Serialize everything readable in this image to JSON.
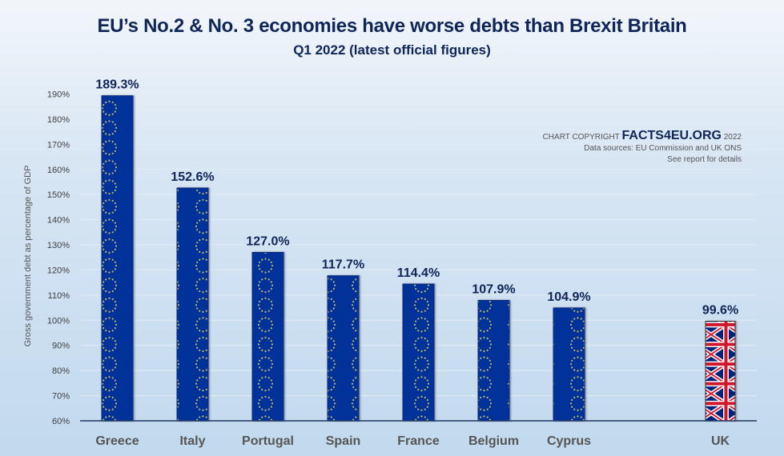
{
  "chart_data": {
    "type": "bar",
    "title": "EU’s No.2 & No. 3 economies have worse debts than Brexit Britain",
    "subtitle": "Q1 2022 (latest official figures)",
    "xlabel": "",
    "ylabel": "Gross government debt as percentage of GDP",
    "categories": [
      "Greece",
      "Italy",
      "Portugal",
      "Spain",
      "France",
      "Belgium",
      "Cyprus",
      "UK"
    ],
    "values": [
      189.3,
      152.6,
      127.0,
      117.7,
      114.4,
      107.9,
      104.9,
      99.6
    ],
    "data_labels": [
      "189.3%",
      "152.6%",
      "127.0%",
      "117.7%",
      "114.4%",
      "107.9%",
      "104.9%",
      "99.6%"
    ],
    "bar_fill": [
      "eu-flag",
      "eu-flag",
      "eu-flag",
      "eu-flag",
      "eu-flag",
      "eu-flag",
      "eu-flag",
      "uk-flag"
    ],
    "ylim": [
      60,
      190
    ],
    "yticks": [
      60,
      70,
      80,
      90,
      100,
      110,
      120,
      130,
      140,
      150,
      160,
      170,
      180,
      190
    ],
    "ytick_labels": [
      "60%",
      "70%",
      "80%",
      "90%",
      "100%",
      "110%",
      "120%",
      "130%",
      "140%",
      "150%",
      "160%",
      "170%",
      "180%",
      "190%"
    ],
    "grid": true,
    "legend": "none",
    "colors": {
      "eu_blue": "#003399",
      "eu_star": "#c8b86a",
      "uk_red": "#cf142b",
      "uk_blue": "#00247d",
      "title": "#0f2557"
    }
  },
  "credit": {
    "prefix": "CHART COPYRIGHT",
    "brand": "FACTS4EU.ORG",
    "year": "2022",
    "sources": "Data sources: EU Commission and UK ONS",
    "note": "See report for details"
  }
}
